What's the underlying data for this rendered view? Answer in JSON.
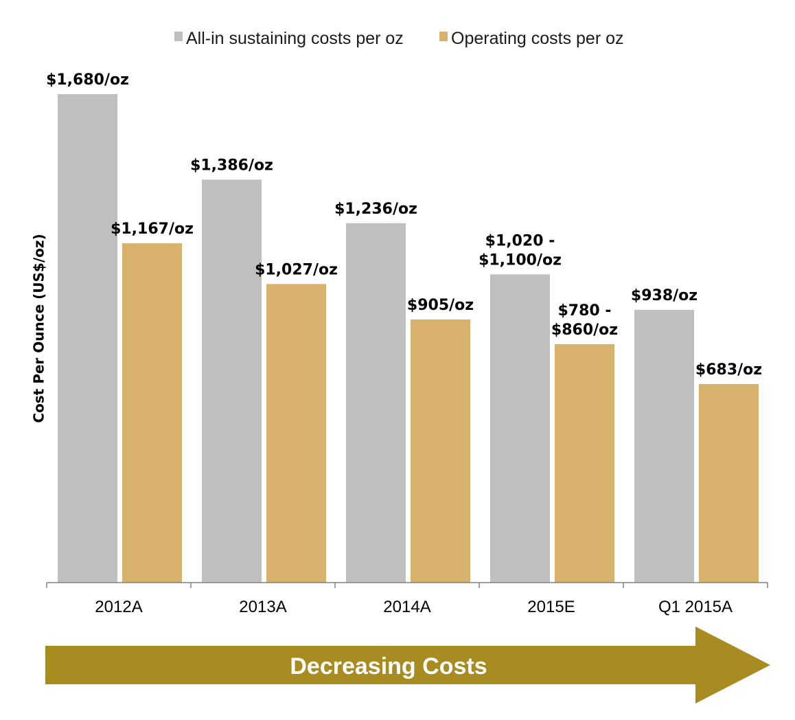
{
  "chart_data": {
    "type": "bar",
    "categories": [
      "2012A",
      "2013A",
      "2014A",
      "2015E",
      "Q1 2015A"
    ],
    "series": [
      {
        "name": "All-in sustaining costs per oz",
        "color": "#bfbfbf",
        "values": [
          1680,
          1386,
          1236,
          1060,
          938
        ],
        "labels": [
          [
            "$1,680/oz"
          ],
          [
            "$1,386/oz"
          ],
          [
            "$1,236/oz"
          ],
          [
            "$1,020 -",
            "$1,100/oz"
          ],
          [
            "$938/oz"
          ]
        ]
      },
      {
        "name": "Operating costs per oz",
        "color": "#d8b26c",
        "values": [
          1167,
          1027,
          905,
          820,
          683
        ],
        "labels": [
          [
            "$1,167/oz"
          ],
          [
            "$1,027/oz"
          ],
          [
            "$905/oz"
          ],
          [
            "$780 -",
            "$860/oz"
          ],
          [
            "$683/oz"
          ]
        ]
      }
    ],
    "xlabel": "",
    "ylabel": "Cost Per Ounce (US$/oz)",
    "ylim": [
      0,
      1680
    ],
    "grid": false,
    "legend_position": "top"
  },
  "banner": {
    "text": "Decreasing Costs",
    "color": "#a88c22"
  }
}
